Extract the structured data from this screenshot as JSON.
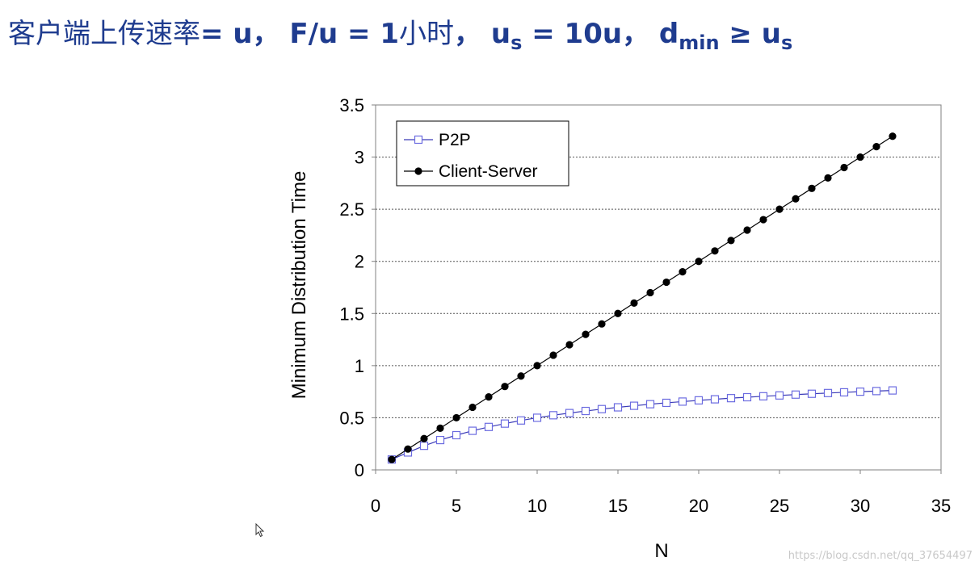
{
  "title": {
    "prefix": "客户端上传速率",
    "part1": "= u， F/u = 1",
    "unit": "小时",
    "part2": "， u",
    "us_sub": "s",
    "part3": " = 10u， d",
    "dmin_sub": "min",
    "part4": " ≥ u",
    "us_sub2": "s",
    "color": "#1f3c8f"
  },
  "watermark": "https://blog.csdn.net/qq_37654497",
  "chart_data": {
    "type": "line",
    "xlabel": "N",
    "ylabel": "Minimum Distribution Time",
    "xlim": [
      0,
      35
    ],
    "ylim": [
      0,
      3.5
    ],
    "x_ticks": [
      0,
      5,
      10,
      15,
      20,
      25,
      30,
      35
    ],
    "y_ticks": [
      0,
      0.5,
      1,
      1.5,
      2,
      2.5,
      3,
      3.5
    ],
    "y_grid": "dotted",
    "legend_position": "top-left",
    "x": [
      1,
      2,
      3,
      4,
      5,
      6,
      7,
      8,
      9,
      10,
      11,
      12,
      13,
      14,
      15,
      16,
      17,
      18,
      19,
      20,
      21,
      22,
      23,
      24,
      25,
      26,
      27,
      28,
      29,
      30,
      31,
      32
    ],
    "series": [
      {
        "name": "P2P",
        "marker": "hollow-square",
        "color": "#3b3bb8",
        "values": [
          0.1,
          0.167,
          0.231,
          0.286,
          0.333,
          0.375,
          0.412,
          0.444,
          0.474,
          0.5,
          0.524,
          0.545,
          0.565,
          0.583,
          0.6,
          0.615,
          0.63,
          0.643,
          0.655,
          0.667,
          0.677,
          0.688,
          0.697,
          0.706,
          0.714,
          0.722,
          0.73,
          0.737,
          0.744,
          0.75,
          0.756,
          0.762
        ]
      },
      {
        "name": "Client-Server",
        "marker": "filled-circle",
        "color": "#000000",
        "values": [
          0.1,
          0.2,
          0.3,
          0.4,
          0.5,
          0.6,
          0.7,
          0.8,
          0.9,
          1.0,
          1.1,
          1.2,
          1.3,
          1.4,
          1.5,
          1.6,
          1.7,
          1.8,
          1.9,
          2.0,
          2.1,
          2.2,
          2.3,
          2.4,
          2.5,
          2.6,
          2.7,
          2.8,
          2.9,
          3.0,
          3.1,
          3.2
        ]
      }
    ]
  }
}
